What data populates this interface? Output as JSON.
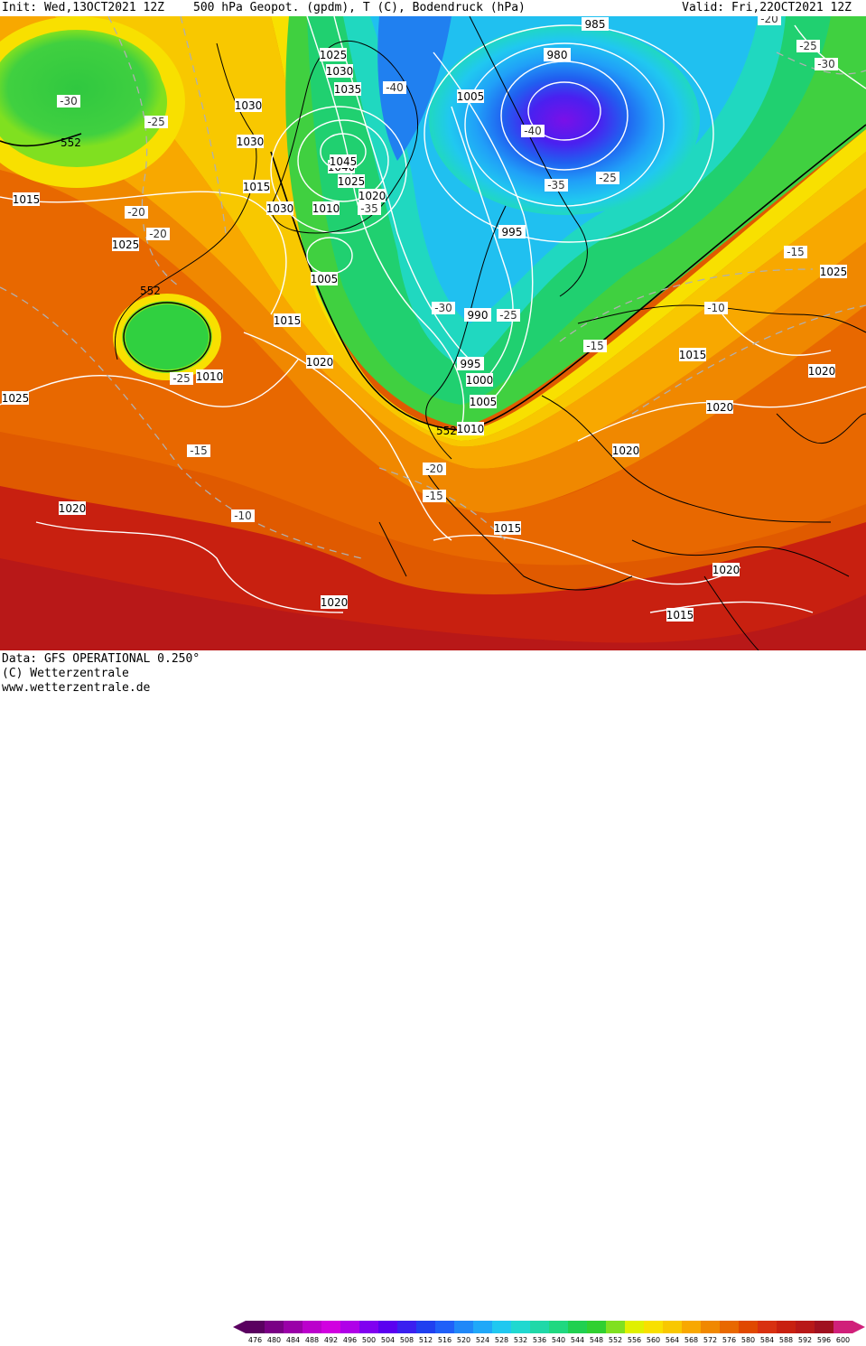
{
  "header": {
    "init": "Init: Wed,13OCT2021 12Z",
    "params": "500 hPa Geopot. (gpdm), T (C), Bodendruck (hPa)",
    "valid": "Valid: Fri,22OCT2021 12Z"
  },
  "footer": {
    "data_line": "Data: GFS OPERATIONAL 0.250°",
    "copyright": "(C) Wetterzentrale",
    "url": "www.wetterzentrale.de"
  },
  "legend": {
    "ticks": [
      "476",
      "480",
      "484",
      "488",
      "492",
      "496",
      "500",
      "504",
      "508",
      "512",
      "516",
      "520",
      "524",
      "528",
      "532",
      "536",
      "540",
      "544",
      "548",
      "552",
      "556",
      "560",
      "564",
      "568",
      "572",
      "576",
      "580",
      "584",
      "588",
      "592",
      "596",
      "600"
    ],
    "colors": [
      "#5a0060",
      "#7a0085",
      "#9a00a8",
      "#bb00cc",
      "#d100e0",
      "#b000e8",
      "#8000f0",
      "#5a00f0",
      "#3a20f0",
      "#2040f0",
      "#2060f8",
      "#2088f8",
      "#20a8f8",
      "#20c8f0",
      "#20d8d0",
      "#20d8a8",
      "#20d880",
      "#20d050",
      "#30d030",
      "#80e020",
      "#e0f000",
      "#f8e000",
      "#f8c800",
      "#f8a800",
      "#f08800",
      "#e86800",
      "#e04800",
      "#d83010",
      "#c82010",
      "#b81818",
      "#a01020",
      "#d0207a"
    ]
  },
  "pressure_labels": [
    "985",
    "980",
    "1025",
    "1030",
    "1035",
    "1040",
    "1045",
    "1025",
    "1020",
    "1030",
    "1010",
    "1030",
    "1030",
    "1015",
    "1015",
    "1025",
    "1005",
    "1005",
    "995",
    "990",
    "995",
    "1000",
    "1005",
    "1010",
    "1015",
    "1010",
    "1020",
    "1025",
    "1015",
    "1020",
    "1020",
    "1020",
    "1020",
    "1015",
    "1020",
    "1025",
    "1015",
    "1020",
    "1015"
  ],
  "temp_labels": [
    "-20",
    "-25",
    "-30",
    "-30",
    "-25",
    "-40",
    "-40",
    "-35",
    "-35",
    "-25",
    "-20",
    "-20",
    "-30",
    "-25",
    "-25",
    "-15",
    "-10",
    "-15",
    "-20",
    "-15",
    "-10",
    "-15"
  ],
  "geopot_labels": [
    "552",
    "552",
    "552"
  ]
}
